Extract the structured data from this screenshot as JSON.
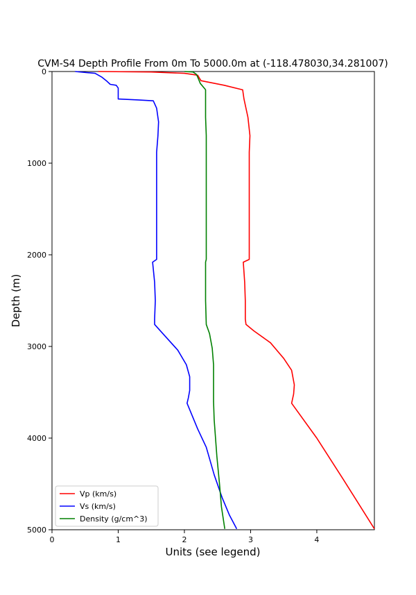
{
  "chart_data": {
    "type": "line",
    "title": "CVM-S4 Depth Profile From 0m To 5000.0m at (-118.478030,34.281007)",
    "xlabel": "Units (see legend)",
    "ylabel": "Depth (m)",
    "xlim": [
      0,
      4.87
    ],
    "ylim": [
      5000,
      0
    ],
    "y_inverted": true,
    "grid": false,
    "legend_position": "bottom-left",
    "x_ticks": [
      0,
      1,
      2,
      3,
      4
    ],
    "y_ticks": [
      0,
      1000,
      2000,
      3000,
      4000,
      5000
    ],
    "series": [
      {
        "name": "Vp (km/s)",
        "color": "#ff0000",
        "points": [
          [
            0.7,
            0
          ],
          [
            1.5,
            5
          ],
          [
            2.0,
            20
          ],
          [
            2.2,
            40
          ],
          [
            2.25,
            100
          ],
          [
            2.6,
            150
          ],
          [
            2.88,
            200
          ],
          [
            2.9,
            300
          ],
          [
            2.96,
            500
          ],
          [
            2.99,
            700
          ],
          [
            2.98,
            880
          ],
          [
            2.98,
            1500
          ],
          [
            2.98,
            2050
          ],
          [
            2.89,
            2080
          ],
          [
            2.91,
            2300
          ],
          [
            2.92,
            2500
          ],
          [
            2.92,
            2700
          ],
          [
            2.93,
            2760
          ],
          [
            3.05,
            2830
          ],
          [
            3.3,
            2960
          ],
          [
            3.5,
            3130
          ],
          [
            3.62,
            3260
          ],
          [
            3.66,
            3420
          ],
          [
            3.65,
            3520
          ],
          [
            3.62,
            3620
          ],
          [
            4.0,
            4000
          ],
          [
            4.4,
            4450
          ],
          [
            4.87,
            4990
          ]
        ]
      },
      {
        "name": "Vs (km/s)",
        "color": "#0000ff",
        "points": [
          [
            0.35,
            0
          ],
          [
            0.65,
            20
          ],
          [
            0.75,
            60
          ],
          [
            0.82,
            100
          ],
          [
            0.88,
            140
          ],
          [
            0.97,
            150
          ],
          [
            1.0,
            180
          ],
          [
            1.0,
            300
          ],
          [
            1.3,
            310
          ],
          [
            1.53,
            320
          ],
          [
            1.58,
            400
          ],
          [
            1.61,
            550
          ],
          [
            1.6,
            700
          ],
          [
            1.58,
            880
          ],
          [
            1.58,
            1500
          ],
          [
            1.58,
            2050
          ],
          [
            1.52,
            2080
          ],
          [
            1.55,
            2300
          ],
          [
            1.56,
            2500
          ],
          [
            1.55,
            2700
          ],
          [
            1.55,
            2760
          ],
          [
            1.7,
            2880
          ],
          [
            1.9,
            3040
          ],
          [
            2.03,
            3200
          ],
          [
            2.08,
            3330
          ],
          [
            2.08,
            3480
          ],
          [
            2.06,
            3560
          ],
          [
            2.04,
            3620
          ],
          [
            2.2,
            3900
          ],
          [
            2.33,
            4100
          ],
          [
            2.45,
            4400
          ],
          [
            2.57,
            4650
          ],
          [
            2.68,
            4840
          ],
          [
            2.79,
            4990
          ]
        ]
      },
      {
        "name": "Density (g/cm^3)",
        "color": "#008000",
        "points": [
          [
            2.0,
            0
          ],
          [
            2.13,
            5
          ],
          [
            2.18,
            30
          ],
          [
            2.2,
            60
          ],
          [
            2.24,
            130
          ],
          [
            2.31,
            190
          ],
          [
            2.32,
            200
          ],
          [
            2.32,
            500
          ],
          [
            2.33,
            700
          ],
          [
            2.33,
            880
          ],
          [
            2.33,
            1500
          ],
          [
            2.33,
            2050
          ],
          [
            2.32,
            2080
          ],
          [
            2.32,
            2500
          ],
          [
            2.33,
            2760
          ],
          [
            2.38,
            2860
          ],
          [
            2.42,
            3020
          ],
          [
            2.44,
            3200
          ],
          [
            2.44,
            3450
          ],
          [
            2.44,
            3600
          ],
          [
            2.45,
            3800
          ],
          [
            2.49,
            4200
          ],
          [
            2.53,
            4500
          ],
          [
            2.56,
            4750
          ],
          [
            2.61,
            4990
          ]
        ]
      }
    ]
  }
}
